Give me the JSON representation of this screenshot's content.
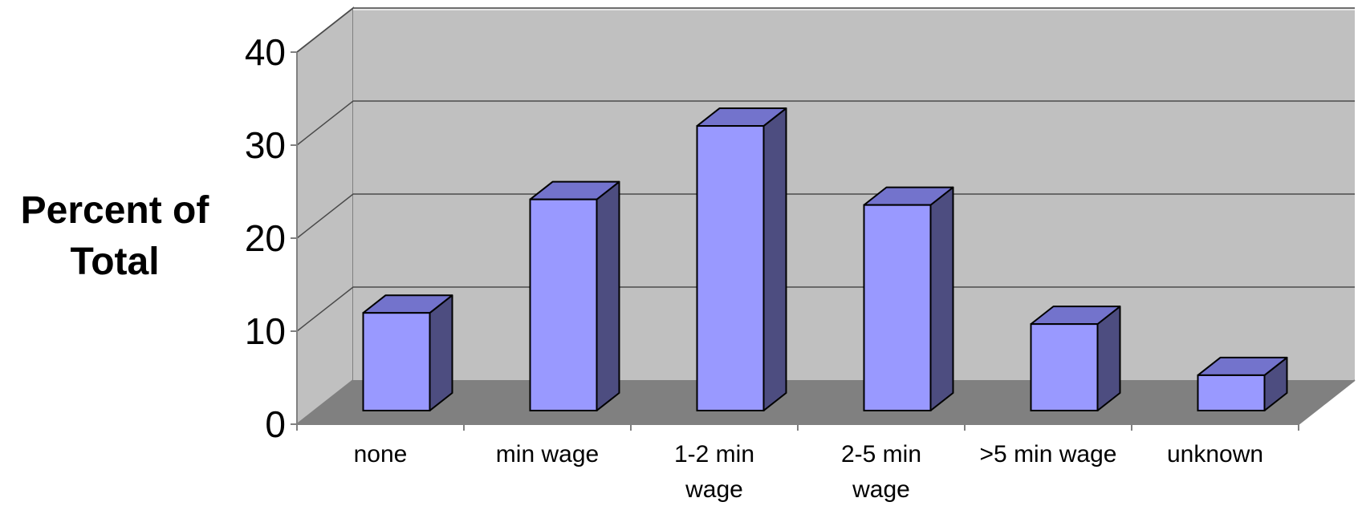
{
  "chart_data": {
    "type": "bar",
    "title": "",
    "ylabel": "Percent of Total",
    "ylabel_lines": [
      "Percent of",
      "Total"
    ],
    "xlabel": "",
    "categories": [
      "none",
      "min wage",
      "1-2 min wage",
      "2-5 min wage",
      ">5 min wage",
      "unknown"
    ],
    "category_lines": [
      [
        "none"
      ],
      [
        "min wage"
      ],
      [
        "1-2 min",
        "wage"
      ],
      [
        "2-5 min",
        "wage"
      ],
      [
        ">5 min wage"
      ],
      [
        "unknown"
      ]
    ],
    "values": [
      10.5,
      22.7,
      30.6,
      22.1,
      9.3,
      3.8
    ],
    "ylim": [
      0,
      40
    ],
    "yticks": [
      0,
      10,
      20,
      30,
      40
    ],
    "grid": true,
    "three_d": true,
    "colors": {
      "bar_front": "#9999ff",
      "bar_top": "#7373cc",
      "bar_side": "#4d4d80",
      "wall": "#c0c0c0",
      "floor": "#808080",
      "grid": "#4a4a4a",
      "axis": "#808080"
    }
  }
}
